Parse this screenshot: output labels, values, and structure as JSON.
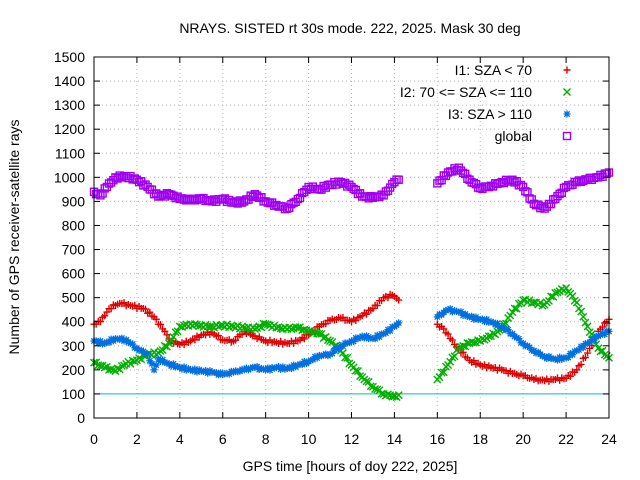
{
  "chart_data": {
    "type": "scatter",
    "title": "NRAYS. SISTED rt 30s mode. 222, 2025. Mask 30 deg",
    "xlabel": "GPS time [hours of doy 222, 2025]",
    "ylabel": "Number of GPS receiver-satellite rays",
    "xlim": [
      0,
      24
    ],
    "ylim": [
      0,
      1500
    ],
    "xticks": [
      "0",
      "2",
      "4",
      "6",
      "8",
      "10",
      "12",
      "14",
      "16",
      "18",
      "20",
      "22",
      "24"
    ],
    "yticks": [
      "0",
      "100",
      "200",
      "300",
      "400",
      "500",
      "600",
      "700",
      "800",
      "900",
      "1000",
      "1100",
      "1200",
      "1300",
      "1400",
      "1500"
    ],
    "grid": true,
    "legend_position": "top-right",
    "threshold_line": {
      "y": 100,
      "color": "#00c0c0"
    },
    "series": [
      {
        "name": "I1: SZA < 70",
        "color": "#e00000",
        "marker": "plus",
        "points": [
          [
            0,
            390
          ],
          [
            0.3,
            400
          ],
          [
            0.6,
            440
          ],
          [
            0.9,
            470
          ],
          [
            1.3,
            475
          ],
          [
            1.8,
            465
          ],
          [
            2.3,
            455
          ],
          [
            2.8,
            420
          ],
          [
            3.2,
            370
          ],
          [
            3.6,
            320
          ],
          [
            4.0,
            305
          ],
          [
            4.5,
            320
          ],
          [
            5.0,
            345
          ],
          [
            5.5,
            355
          ],
          [
            6.0,
            325
          ],
          [
            6.5,
            320
          ],
          [
            7.0,
            360
          ],
          [
            7.5,
            340
          ],
          [
            8.0,
            320
          ],
          [
            8.5,
            315
          ],
          [
            9.0,
            310
          ],
          [
            9.5,
            320
          ],
          [
            10.0,
            345
          ],
          [
            10.5,
            380
          ],
          [
            11.0,
            405
          ],
          [
            11.5,
            415
          ],
          [
            12.0,
            400
          ],
          [
            12.5,
            425
          ],
          [
            13.0,
            455
          ],
          [
            13.5,
            500
          ],
          [
            13.9,
            510
          ],
          [
            14.2,
            490
          ],
          [
            16.0,
            390
          ],
          [
            16.3,
            370
          ],
          [
            16.6,
            330
          ],
          [
            17.0,
            285
          ],
          [
            17.5,
            240
          ],
          [
            18.0,
            220
          ],
          [
            18.5,
            210
          ],
          [
            19.0,
            200
          ],
          [
            19.5,
            185
          ],
          [
            20.0,
            175
          ],
          [
            20.5,
            160
          ],
          [
            21.0,
            155
          ],
          [
            21.5,
            160
          ],
          [
            22.0,
            165
          ],
          [
            22.5,
            200
          ],
          [
            23.0,
            270
          ],
          [
            23.5,
            360
          ],
          [
            24.0,
            410
          ]
        ]
      },
      {
        "name": "I2: 70 <= SZA <= 110",
        "color": "#00b000",
        "marker": "cross",
        "points": [
          [
            0,
            230
          ],
          [
            0.5,
            210
          ],
          [
            1.0,
            195
          ],
          [
            1.5,
            225
          ],
          [
            2.0,
            240
          ],
          [
            2.5,
            265
          ],
          [
            3.0,
            270
          ],
          [
            3.5,
            310
          ],
          [
            4.0,
            380
          ],
          [
            4.5,
            390
          ],
          [
            5.0,
            385
          ],
          [
            5.5,
            380
          ],
          [
            6.0,
            385
          ],
          [
            6.5,
            380
          ],
          [
            7.0,
            375
          ],
          [
            7.5,
            370
          ],
          [
            8.0,
            390
          ],
          [
            8.5,
            375
          ],
          [
            9.0,
            370
          ],
          [
            9.5,
            375
          ],
          [
            10.0,
            360
          ],
          [
            10.5,
            350
          ],
          [
            11.0,
            320
          ],
          [
            11.5,
            280
          ],
          [
            12.0,
            220
          ],
          [
            12.5,
            170
          ],
          [
            13.0,
            130
          ],
          [
            13.5,
            100
          ],
          [
            14.0,
            90
          ],
          [
            14.2,
            95
          ],
          [
            16.0,
            160
          ],
          [
            16.5,
            220
          ],
          [
            17.0,
            290
          ],
          [
            17.5,
            310
          ],
          [
            18.0,
            320
          ],
          [
            18.5,
            340
          ],
          [
            19.0,
            370
          ],
          [
            19.5,
            440
          ],
          [
            20.0,
            490
          ],
          [
            20.5,
            480
          ],
          [
            21.0,
            470
          ],
          [
            21.5,
            520
          ],
          [
            22.0,
            540
          ],
          [
            22.5,
            480
          ],
          [
            23.0,
            380
          ],
          [
            23.5,
            290
          ],
          [
            24.0,
            250
          ]
        ]
      },
      {
        "name": "I3: SZA > 110",
        "color": "#0070e0",
        "marker": "star",
        "points": [
          [
            0,
            320
          ],
          [
            0.5,
            310
          ],
          [
            1.0,
            330
          ],
          [
            1.5,
            325
          ],
          [
            2.0,
            290
          ],
          [
            2.5,
            265
          ],
          [
            2.8,
            200
          ],
          [
            3.0,
            245
          ],
          [
            3.5,
            225
          ],
          [
            4.0,
            210
          ],
          [
            4.5,
            200
          ],
          [
            5.0,
            195
          ],
          [
            5.5,
            190
          ],
          [
            6.0,
            180
          ],
          [
            6.5,
            190
          ],
          [
            7.0,
            200
          ],
          [
            7.5,
            210
          ],
          [
            8.0,
            200
          ],
          [
            8.5,
            210
          ],
          [
            9.0,
            205
          ],
          [
            9.5,
            220
          ],
          [
            10.0,
            235
          ],
          [
            10.5,
            260
          ],
          [
            11.0,
            265
          ],
          [
            11.5,
            300
          ],
          [
            12.0,
            320
          ],
          [
            12.5,
            340
          ],
          [
            13.0,
            330
          ],
          [
            13.5,
            350
          ],
          [
            14.0,
            380
          ],
          [
            14.2,
            395
          ],
          [
            16.0,
            420
          ],
          [
            16.5,
            450
          ],
          [
            17.0,
            440
          ],
          [
            17.5,
            420
          ],
          [
            18.0,
            410
          ],
          [
            18.5,
            400
          ],
          [
            19.0,
            380
          ],
          [
            19.5,
            350
          ],
          [
            20.0,
            310
          ],
          [
            20.5,
            280
          ],
          [
            21.0,
            255
          ],
          [
            21.5,
            245
          ],
          [
            22.0,
            250
          ],
          [
            22.5,
            280
          ],
          [
            23.0,
            310
          ],
          [
            23.5,
            340
          ],
          [
            24.0,
            360
          ]
        ]
      },
      {
        "name": "global",
        "color": "#a000f0",
        "marker": "square",
        "points": [
          [
            0,
            940
          ],
          [
            0.3,
            925
          ],
          [
            0.6,
            960
          ],
          [
            1.0,
            1000
          ],
          [
            1.5,
            1005
          ],
          [
            2.0,
            990
          ],
          [
            2.5,
            960
          ],
          [
            3.0,
            920
          ],
          [
            3.5,
            930
          ],
          [
            4.0,
            910
          ],
          [
            4.5,
            905
          ],
          [
            5.0,
            910
          ],
          [
            5.5,
            900
          ],
          [
            6.0,
            910
          ],
          [
            6.5,
            895
          ],
          [
            7.0,
            900
          ],
          [
            7.5,
            930
          ],
          [
            8.0,
            900
          ],
          [
            8.5,
            885
          ],
          [
            9.0,
            870
          ],
          [
            9.5,
            910
          ],
          [
            10.0,
            960
          ],
          [
            10.5,
            950
          ],
          [
            11.0,
            970
          ],
          [
            11.5,
            980
          ],
          [
            12.0,
            960
          ],
          [
            12.5,
            920
          ],
          [
            13.0,
            915
          ],
          [
            13.5,
            925
          ],
          [
            14.0,
            980
          ],
          [
            14.2,
            990
          ],
          [
            16.0,
            975
          ],
          [
            16.5,
            1020
          ],
          [
            17.0,
            1040
          ],
          [
            17.5,
            990
          ],
          [
            18.0,
            955
          ],
          [
            18.5,
            965
          ],
          [
            19.0,
            980
          ],
          [
            19.5,
            990
          ],
          [
            20.0,
            960
          ],
          [
            20.5,
            890
          ],
          [
            21.0,
            870
          ],
          [
            21.5,
            910
          ],
          [
            22.0,
            960
          ],
          [
            22.5,
            980
          ],
          [
            23.0,
            990
          ],
          [
            23.5,
            1000
          ],
          [
            24.0,
            1020
          ]
        ]
      }
    ]
  }
}
